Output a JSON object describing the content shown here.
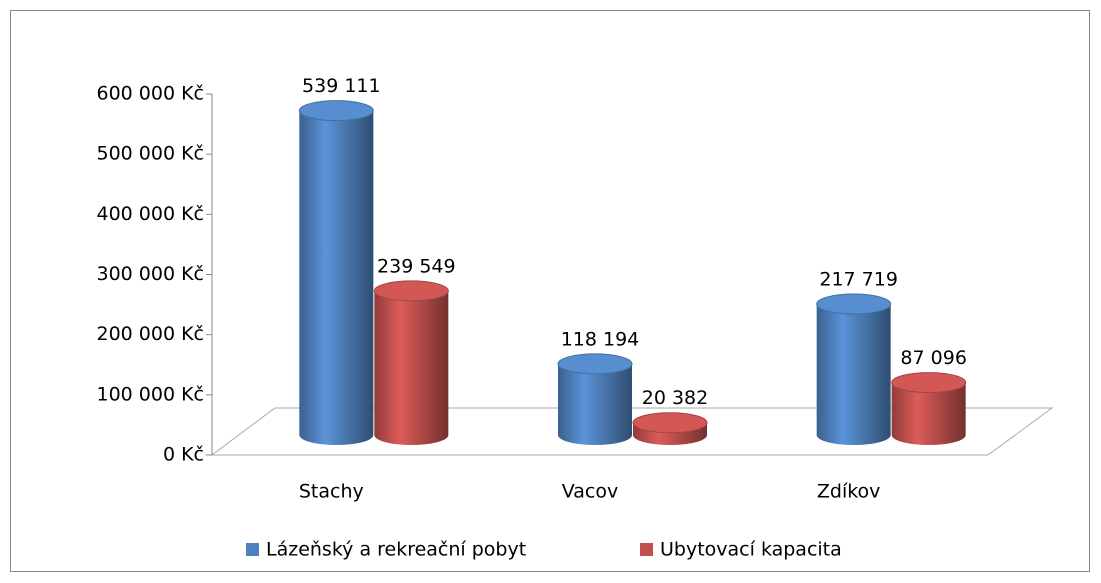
{
  "chart_data": {
    "type": "bar3d",
    "categories": [
      "Stachy",
      "Vacov",
      "Zdíkov"
    ],
    "series": [
      {
        "name": "Lázeňský a rekreační pobyt",
        "color": "#4f81bd",
        "values": [
          539111,
          118194,
          217719
        ],
        "value_labels": [
          "539 111",
          "118 194",
          "217 719"
        ]
      },
      {
        "name": "Ubytovací kapacita",
        "color": "#c0504d",
        "values": [
          239549,
          20382,
          87096
        ],
        "value_labels": [
          "239 549",
          "20 382",
          "87 096"
        ]
      }
    ],
    "ylim": [
      0,
      600000
    ],
    "yticks": [
      {
        "value": 0,
        "label": "0 Kč"
      },
      {
        "value": 100000,
        "label": "100 000 Kč"
      },
      {
        "value": 200000,
        "label": "200 000 Kč"
      },
      {
        "value": 300000,
        "label": "300 000 Kč"
      },
      {
        "value": 400000,
        "label": "400 000 Kč"
      },
      {
        "value": 500000,
        "label": "500 000 Kč"
      },
      {
        "value": 600000,
        "label": "600 000 Kč"
      }
    ],
    "legend": "bottom"
  }
}
